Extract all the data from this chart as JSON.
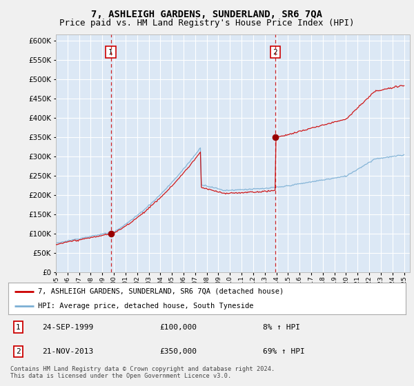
{
  "title": "7, ASHLEIGH GARDENS, SUNDERLAND, SR6 7QA",
  "subtitle": "Price paid vs. HM Land Registry's House Price Index (HPI)",
  "yticks": [
    0,
    50000,
    100000,
    150000,
    200000,
    250000,
    300000,
    350000,
    400000,
    450000,
    500000,
    550000,
    600000
  ],
  "xlim_start": 1995.0,
  "xlim_end": 2025.5,
  "ylim": [
    0,
    615000
  ],
  "plot_bg_color": "#dce8f5",
  "fig_bg_color": "#f0f0f0",
  "grid_color": "#ffffff",
  "sale1_year": 1999.73,
  "sale1_price": 100000,
  "sale2_year": 2013.9,
  "sale2_price": 350000,
  "sale1_label": "1",
  "sale2_label": "2",
  "line1_color": "#cc0000",
  "line2_color": "#7bafd4",
  "marker_color": "#990000",
  "vline_color": "#cc0000",
  "legend_label1": "7, ASHLEIGH GARDENS, SUNDERLAND, SR6 7QA (detached house)",
  "legend_label2": "HPI: Average price, detached house, South Tyneside",
  "table_row1": [
    "1",
    "24-SEP-1999",
    "£100,000",
    "8% ↑ HPI"
  ],
  "table_row2": [
    "2",
    "21-NOV-2013",
    "£350,000",
    "69% ↑ HPI"
  ],
  "footer": "Contains HM Land Registry data © Crown copyright and database right 2024.\nThis data is licensed under the Open Government Licence v3.0.",
  "title_fontsize": 10,
  "subtitle_fontsize": 9
}
